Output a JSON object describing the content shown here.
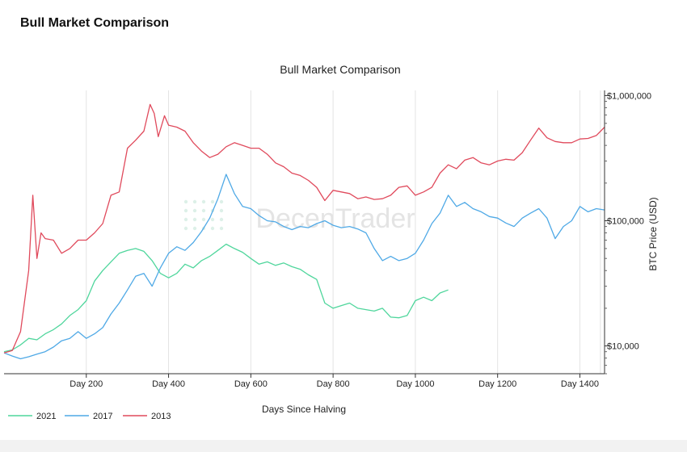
{
  "card": {
    "title": "Bull Market Comparison"
  },
  "watermark": {
    "text": "DecenTrader",
    "color": "#e4e4e4"
  },
  "chart_data": {
    "type": "line",
    "title": "Bull Market Comparison",
    "xlabel": "Days Since Halving",
    "ylabel": "BTC Price (USD)",
    "y_scale": "log",
    "y_axis_side": "right",
    "xlim": [
      0,
      1460
    ],
    "ylim": [
      6000,
      1100000
    ],
    "grid": {
      "x": true,
      "y": false
    },
    "legend_position": "bottom-left",
    "x_ticks": [
      {
        "value": 200,
        "label": "Day 200"
      },
      {
        "value": 400,
        "label": "Day 400"
      },
      {
        "value": 600,
        "label": "Day 600"
      },
      {
        "value": 800,
        "label": "Day 800"
      },
      {
        "value": 1000,
        "label": "Day 1000"
      },
      {
        "value": 1200,
        "label": "Day 1200"
      },
      {
        "value": 1400,
        "label": "Day 1400"
      }
    ],
    "y_ticks": [
      {
        "value": 10000,
        "label": "$10,000"
      },
      {
        "value": 100000,
        "label": "$100,000"
      },
      {
        "value": 1000000,
        "label": "$1,000,000"
      }
    ],
    "series": [
      {
        "name": "2021",
        "color": "#4fd69c",
        "x": [
          0,
          20,
          40,
          60,
          80,
          100,
          120,
          140,
          160,
          180,
          200,
          220,
          240,
          260,
          280,
          300,
          320,
          340,
          360,
          380,
          400,
          420,
          440,
          460,
          480,
          500,
          520,
          540,
          560,
          580,
          600,
          620,
          640,
          660,
          680,
          700,
          720,
          740,
          760,
          780,
          800,
          820,
          840,
          860,
          880,
          900,
          920,
          940,
          960,
          980,
          1000,
          1020,
          1040,
          1060,
          1080
        ],
        "y": [
          9000,
          9300,
          10200,
          11500,
          11200,
          12500,
          13500,
          15000,
          17500,
          19500,
          23000,
          33000,
          40000,
          47000,
          55000,
          58000,
          60000,
          57000,
          48000,
          38000,
          35000,
          38000,
          45000,
          42000,
          48000,
          52000,
          58000,
          65000,
          60000,
          56000,
          50000,
          45000,
          47000,
          44000,
          46000,
          43000,
          41000,
          37000,
          34000,
          22000,
          20000,
          21000,
          22000,
          20000,
          19500,
          19000,
          20000,
          17000,
          16800,
          17500,
          23000,
          24500,
          23000,
          26500,
          28000
        ]
      },
      {
        "name": "2017",
        "color": "#4fa9e6",
        "x": [
          0,
          20,
          40,
          60,
          80,
          100,
          120,
          140,
          160,
          180,
          200,
          220,
          240,
          260,
          280,
          300,
          320,
          340,
          360,
          380,
          400,
          420,
          440,
          460,
          480,
          500,
          520,
          540,
          560,
          580,
          600,
          620,
          640,
          660,
          680,
          700,
          720,
          740,
          760,
          780,
          800,
          820,
          840,
          860,
          880,
          900,
          920,
          940,
          960,
          980,
          1000,
          1020,
          1040,
          1060,
          1080,
          1100,
          1120,
          1140,
          1160,
          1180,
          1200,
          1220,
          1240,
          1260,
          1280,
          1300,
          1320,
          1340,
          1360,
          1380,
          1400,
          1420,
          1440,
          1460
        ],
        "y": [
          8800,
          8300,
          7900,
          8200,
          8600,
          9000,
          9800,
          11000,
          11500,
          13000,
          11500,
          12500,
          14000,
          18000,
          22000,
          28000,
          36000,
          38000,
          30000,
          42000,
          55000,
          62000,
          58000,
          67000,
          82000,
          105000,
          150000,
          235000,
          165000,
          130000,
          125000,
          110000,
          100000,
          98000,
          90000,
          85000,
          90000,
          88000,
          95000,
          100000,
          92000,
          88000,
          90000,
          86000,
          80000,
          60000,
          48000,
          52000,
          48000,
          50000,
          55000,
          70000,
          95000,
          115000,
          160000,
          130000,
          140000,
          125000,
          118000,
          108000,
          105000,
          96000,
          90000,
          105000,
          115000,
          125000,
          105000,
          72000,
          90000,
          100000,
          130000,
          118000,
          125000,
          122000
        ]
      },
      {
        "name": "2013",
        "color": "#e04a5c",
        "x": [
          0,
          20,
          40,
          60,
          70,
          80,
          90,
          100,
          120,
          140,
          160,
          180,
          200,
          220,
          240,
          260,
          280,
          300,
          320,
          340,
          355,
          365,
          375,
          390,
          400,
          420,
          440,
          460,
          480,
          500,
          520,
          540,
          560,
          580,
          600,
          620,
          640,
          660,
          680,
          700,
          720,
          740,
          760,
          780,
          800,
          820,
          840,
          860,
          880,
          900,
          920,
          940,
          960,
          980,
          1000,
          1020,
          1040,
          1060,
          1080,
          1100,
          1120,
          1140,
          1160,
          1180,
          1200,
          1220,
          1240,
          1260,
          1280,
          1300,
          1320,
          1340,
          1360,
          1380,
          1400,
          1420,
          1440,
          1460
        ],
        "y": [
          8800,
          9200,
          13000,
          40000,
          160000,
          50000,
          80000,
          72000,
          70000,
          55000,
          60000,
          70000,
          70000,
          80000,
          95000,
          160000,
          170000,
          380000,
          440000,
          520000,
          850000,
          720000,
          470000,
          690000,
          580000,
          560000,
          520000,
          420000,
          360000,
          320000,
          340000,
          390000,
          420000,
          400000,
          380000,
          380000,
          340000,
          290000,
          270000,
          240000,
          230000,
          210000,
          185000,
          145000,
          175000,
          170000,
          165000,
          150000,
          155000,
          148000,
          150000,
          160000,
          185000,
          190000,
          160000,
          170000,
          185000,
          240000,
          280000,
          260000,
          305000,
          320000,
          290000,
          280000,
          300000,
          310000,
          305000,
          350000,
          440000,
          550000,
          460000,
          430000,
          420000,
          420000,
          450000,
          455000,
          480000,
          560000
        ]
      }
    ]
  }
}
